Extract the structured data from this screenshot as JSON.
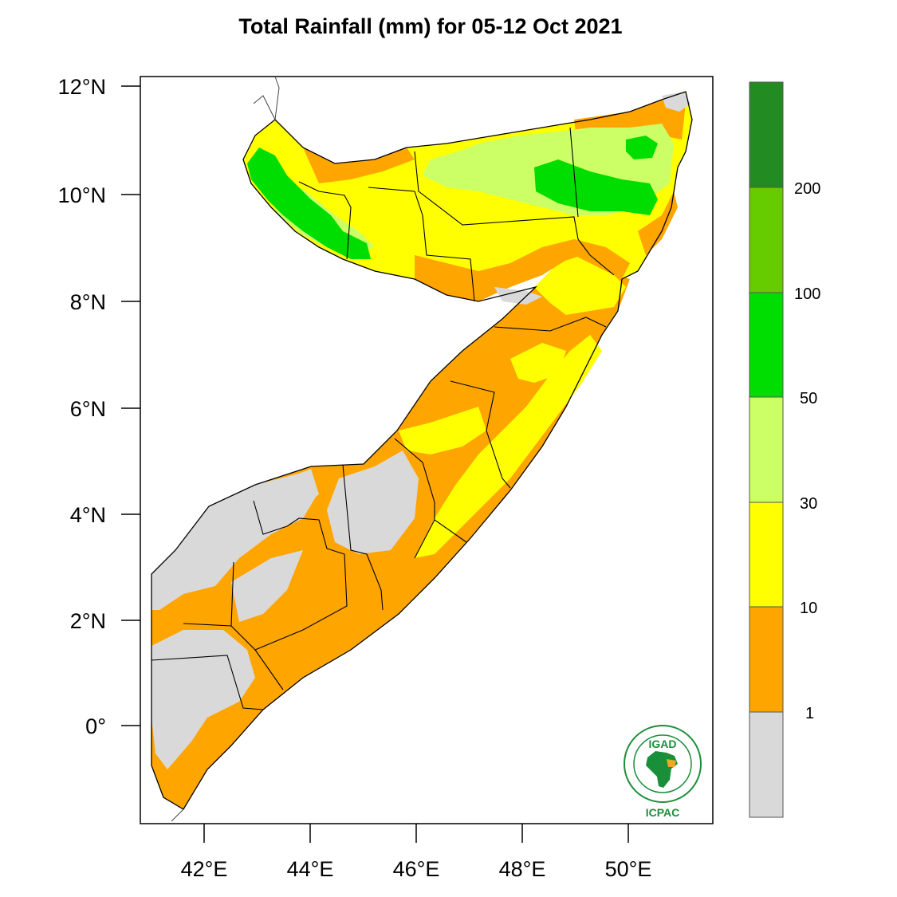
{
  "title": "Total Rainfall (mm) for 05-12 Oct 2021",
  "map": {
    "lat_ticks": [
      "12°N",
      "10°N",
      "8°N",
      "6°N",
      "4°N",
      "2°N",
      "0°"
    ],
    "lon_ticks": [
      "42°E",
      "44°E",
      "46°E",
      "48°E",
      "50°E"
    ]
  },
  "legend": {
    "levels": [
      "200",
      "100",
      "50",
      "30",
      "10",
      "1"
    ],
    "colors": [
      "#228B22",
      "#66CC00",
      "#00DD00",
      "#CCFF66",
      "#FFFF00",
      "#FFA500",
      "#D9D9D9"
    ]
  },
  "logo": {
    "name": "IGAD",
    "org": "ICPAC",
    "ring_text": "INTERGOVERNMENTAL AUTHORITY ON DEVELOPMENT"
  }
}
